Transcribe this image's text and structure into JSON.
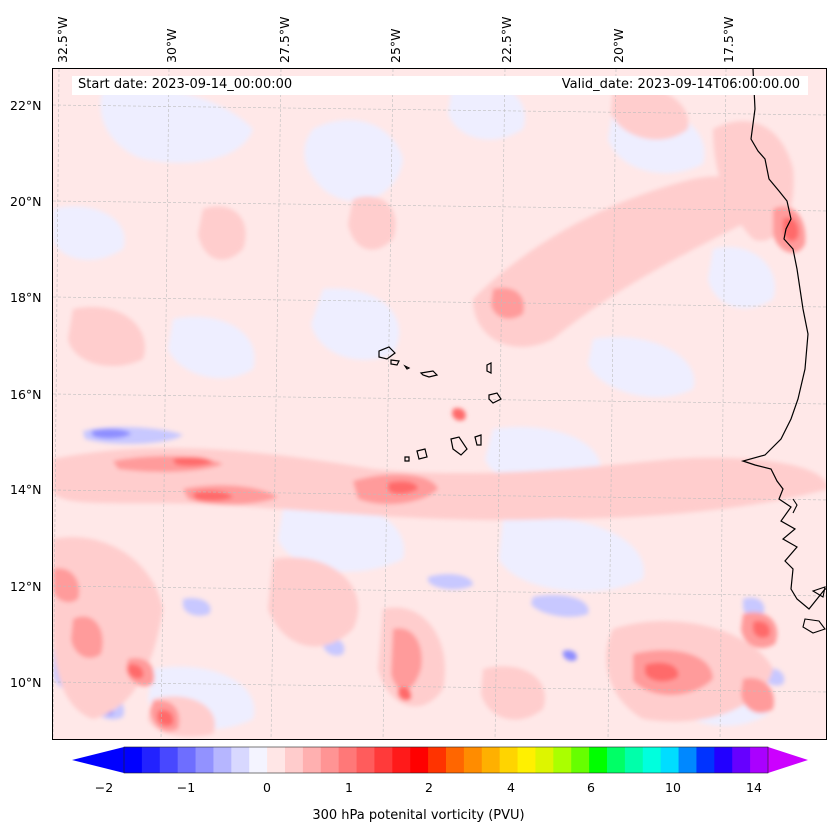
{
  "map": {
    "start_date": "Start date: 2023-09-14_00:00:00",
    "valid_date": "Valid_date: 2023-09-14T06:00:00.00",
    "lon_labels": [
      "32.5°W",
      "30°W",
      "27.5°W",
      "25°W",
      "22.5°W",
      "20°W",
      "17.5°W"
    ],
    "lat_labels": [
      "22°N",
      "20°N",
      "18°N",
      "16°N",
      "14°N",
      "12°N",
      "10°N"
    ]
  },
  "colorbar": {
    "label": "300 hPa potenital vorticity (PVU)",
    "ticks": [
      "−2",
      "−1",
      "0",
      "1",
      "2",
      "4",
      "6",
      "10",
      "14"
    ],
    "colors": [
      "#0000ff",
      "#2222ff",
      "#4848ff",
      "#6e6eff",
      "#9292ff",
      "#b6b6ff",
      "#d8d8ff",
      "#f4f4ff",
      "#ffe6e6",
      "#ffcccc",
      "#ffb0b0",
      "#ff9494",
      "#ff7878",
      "#ff5c5c",
      "#ff3a3a",
      "#ff1a1a",
      "#ff0000",
      "#ff3300",
      "#ff6600",
      "#ff8c00",
      "#ffb000",
      "#ffd400",
      "#fff000",
      "#ddf500",
      "#aaff00",
      "#66ff00",
      "#00ff00",
      "#00ff66",
      "#00ffaa",
      "#00ffdd",
      "#00ddff",
      "#0088ff",
      "#0033ff",
      "#2200ff",
      "#6600ff",
      "#aa00ff"
    ],
    "low_extend_color": "#0000ff",
    "high_extend_color": "#cc00ff"
  },
  "colors": {
    "background_pv": "#ffe8e8",
    "weak_positive": "#ffcdcd",
    "moderate_positive": "#ff9b9b",
    "strong_positive": "#ff6a6a",
    "weak_negative": "#eeeeff",
    "moderate_negative": "#c8c8ff",
    "strong_negative": "#8e8eff",
    "coastline": "#000000"
  }
}
